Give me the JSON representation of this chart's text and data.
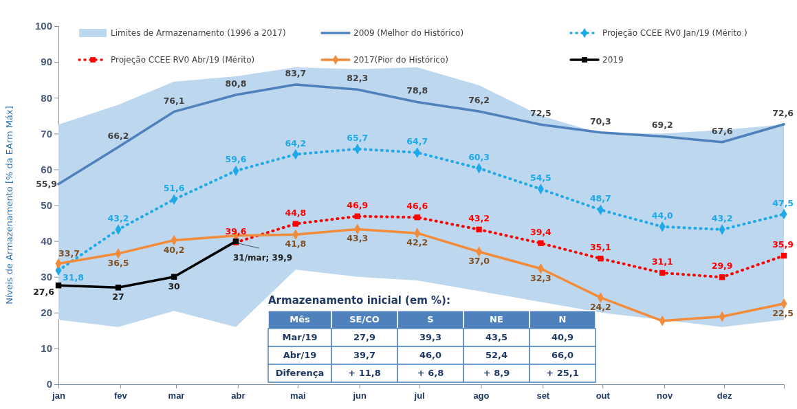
{
  "chart_data": {
    "type": "line",
    "ylabel": "Níveis de Armazenamento [% da EArm Máx]",
    "x": [
      "--01-01",
      "--01-31",
      "--02-28",
      "--03-31",
      "--04-30",
      "--05-31",
      "--06-30",
      "--07-31",
      "--08-31",
      "--09-30",
      "--10-31",
      "--11-30",
      "--12-31"
    ],
    "xlim": [
      "--01-01",
      "--12-31"
    ],
    "xticks": [
      {
        "value": "--01-01",
        "label": "jan"
      },
      {
        "value": "--02-01",
        "label": "fev"
      },
      {
        "value": "--03-01",
        "label": "mar"
      },
      {
        "value": "--04-01",
        "label": "abr"
      },
      {
        "value": "--05-01",
        "label": "mai"
      },
      {
        "value": "--06-01",
        "label": "jun"
      },
      {
        "value": "--07-01",
        "label": "jul"
      },
      {
        "value": "--08-01",
        "label": "ago"
      },
      {
        "value": "--09-01",
        "label": "set"
      },
      {
        "value": "--10-01",
        "label": "out"
      },
      {
        "value": "--11-01",
        "label": "nov"
      },
      {
        "value": "--12-01",
        "label": "dez"
      }
    ],
    "ylim": [
      0,
      100
    ],
    "yticks": [
      0,
      10,
      20,
      30,
      40,
      50,
      60,
      70,
      80,
      90,
      100
    ],
    "legend": "top",
    "series": [
      {
        "name": "Limites de Armazenamento (1996 a 2017)",
        "type": "area",
        "color": "#bdd7ee",
        "values": [
          null,
          null,
          null,
          null,
          null,
          null,
          null,
          null,
          null,
          null,
          null,
          null,
          null
        ],
        "lower": [
          18,
          16,
          20.5,
          16,
          32,
          30,
          29,
          26,
          23,
          20,
          18,
          16,
          18
        ],
        "upper": [
          72.5,
          78,
          84.5,
          86,
          88.5,
          88,
          88.5,
          83.5,
          75,
          70,
          70,
          71,
          72.5
        ]
      },
      {
        "name": "2009 (Melhor do Histórico)",
        "color": "#4f81bd",
        "marker": "none",
        "line_style": "solid",
        "values": [
          55.9,
          66.2,
          76.1,
          80.8,
          83.7,
          82.3,
          78.8,
          76.2,
          72.5,
          70.3,
          69.2,
          67.6,
          72.6
        ],
        "value_labels": [
          "55,9",
          "66,2",
          "76,1",
          "80,8",
          "83,7",
          "82,3",
          "78,8",
          "76,2",
          "72,5",
          "70,3",
          "69,2",
          "67,6",
          "72,6"
        ]
      },
      {
        "name": "Projeção CCEE RV0 Jan/19 (Mérito )",
        "color": "#1fa9e8",
        "marker": "diamond",
        "line_style": "dotted",
        "values": [
          31.8,
          43.2,
          51.6,
          59.6,
          64.2,
          65.7,
          64.7,
          60.3,
          54.5,
          48.7,
          44.0,
          43.2,
          47.5
        ],
        "value_labels": [
          "31,8",
          "43,2",
          "51,6",
          "59,6",
          "64,2",
          "65,7",
          "64,7",
          "60,3",
          "54,5",
          "48,7",
          "44,0",
          "43,2",
          "47,5"
        ]
      },
      {
        "name": "Projeção CCEE RV0 Abr/19 (Mérito)",
        "color": "#ff0000",
        "marker": "square",
        "line_style": "dotted",
        "values": [
          null,
          null,
          null,
          39.6,
          44.8,
          46.9,
          46.6,
          43.2,
          39.4,
          35.1,
          31.1,
          29.9,
          35.9
        ],
        "value_labels": [
          null,
          null,
          null,
          "39,6",
          "44,8",
          "46,9",
          "46,6",
          "43,2",
          "39,4",
          "35,1",
          "31,1",
          "29,9",
          "35,9"
        ]
      },
      {
        "name": "2017(Pior do Histórico)",
        "color": "#f28c3a",
        "marker": "diamond",
        "line_style": "solid",
        "values": [
          33.7,
          36.5,
          40.2,
          41.5,
          41.8,
          43.3,
          42.2,
          37.0,
          32.3,
          24.2,
          17.7,
          18.9,
          22.5
        ],
        "value_labels": [
          "33,7",
          "36,5",
          "40,2",
          null,
          "41,8",
          "43,3",
          "42,2",
          "37,0",
          "32,3",
          "24,2",
          null,
          null,
          "22,5"
        ]
      },
      {
        "name": "2019",
        "color": "#000000",
        "marker": "square",
        "line_style": "solid",
        "values": [
          27.6,
          27,
          30,
          39.9,
          null,
          null,
          null,
          null,
          null,
          null,
          null,
          null,
          null
        ],
        "value_labels": [
          "27,6",
          "27",
          "30",
          null,
          null,
          null,
          null,
          null,
          null,
          null,
          null,
          null,
          null
        ]
      }
    ],
    "annotations": [
      {
        "text": "31/mar; 39,9",
        "x": "--03-31",
        "y": 39.9
      },
      "Armazenamento inicial (em %):",
      "Mês",
      "SE/CO",
      "S",
      "NE",
      "N",
      "Mar/19",
      "27,9",
      "39,3",
      "43,5",
      "40,9",
      "Abr/19",
      "39,7",
      "46,0",
      "52,4",
      "66,0",
      "Diferença",
      "+ 11,8",
      "+ 6,8",
      "+ 8,9",
      "+ 25,1"
    ]
  }
}
